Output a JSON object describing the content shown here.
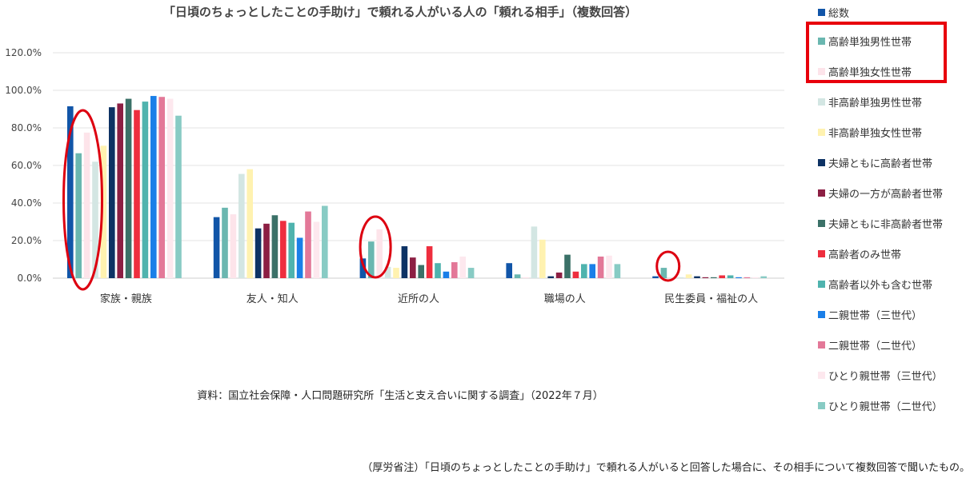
{
  "title": "「日頃のちょっとしたことの手助け」で頼れる人がいる人の「頼れる相手」（複数回答）",
  "source": "資料：国立社会保障・人口問題研究所「生活と支え合いに関する調査」（2022年７月）",
  "note": "（厚労省注）「日頃のちょっとしたことの手助け」で頼れる人がいると回答した場合に、その相手について複数回答で聞いたもの。",
  "chart_data": {
    "type": "bar",
    "ylim": [
      0,
      120
    ],
    "yticks": [
      "0.0%",
      "20.0%",
      "40.0%",
      "60.0%",
      "80.0%",
      "100.0%",
      "120.0%"
    ],
    "grid": true,
    "legend_position": "right",
    "categories": [
      "家族・親族",
      "友人・知人",
      "近所の人",
      "職場の人",
      "民生委員・福祉の人"
    ],
    "series": [
      {
        "name": "総数",
        "color": "#1155a8",
        "values": [
          91.5,
          32.5,
          10.5,
          8.0,
          1.0
        ]
      },
      {
        "name": "高齢単独男性世帯",
        "color": "#6ab7b0",
        "values": [
          66.5,
          37.5,
          19.5,
          2.0,
          5.5
        ]
      },
      {
        "name": "高齢単独女性世帯",
        "color": "#fde4ea",
        "values": [
          77.5,
          34.0,
          26.0,
          0.5,
          0.0
        ]
      },
      {
        "name": "非高齢単独男性世帯",
        "color": "#d3e6e3",
        "values": [
          62.0,
          55.5,
          6.0,
          27.5,
          0.5
        ]
      },
      {
        "name": "非高齢単独女性世帯",
        "color": "#fff2b0",
        "values": [
          70.5,
          58.0,
          5.5,
          20.5,
          2.0
        ]
      },
      {
        "name": "夫婦ともに高齢者世帯",
        "color": "#0d3264",
        "values": [
          91.0,
          26.5,
          17.0,
          1.0,
          1.0
        ]
      },
      {
        "name": "夫婦の一方が高齢者世帯",
        "color": "#8c1f43",
        "values": [
          93.0,
          29.0,
          11.0,
          3.0,
          0.5
        ]
      },
      {
        "name": "夫婦ともに非高齢者世帯",
        "color": "#3b7168",
        "values": [
          95.5,
          33.5,
          7.0,
          12.5,
          0.5
        ]
      },
      {
        "name": "高齢者のみ世帯",
        "color": "#ee2e3e",
        "values": [
          89.5,
          30.5,
          17.0,
          3.5,
          1.5
        ]
      },
      {
        "name": "高齢者以外も含む世帯",
        "color": "#4fb3ae",
        "values": [
          94.0,
          29.5,
          8.0,
          7.5,
          1.5
        ]
      },
      {
        "name": "二親世帯（三世代）",
        "color": "#1a7fe8",
        "values": [
          97.0,
          21.5,
          3.5,
          7.5,
          0.5
        ]
      },
      {
        "name": "二親世帯（二世代）",
        "color": "#e37898",
        "values": [
          96.5,
          35.5,
          8.5,
          11.5,
          0.5
        ]
      },
      {
        "name": "ひとり親世帯（三世代）",
        "color": "#fde8ee",
        "values": [
          95.5,
          30.0,
          11.5,
          12.0,
          0.5
        ]
      },
      {
        "name": "ひとり親世帯（二世代）",
        "color": "#88cbc4",
        "values": [
          86.5,
          38.5,
          5.5,
          7.5,
          1.0
        ]
      }
    ]
  },
  "highlight_color": "#e8000b",
  "ellipse_color": "#dd0010"
}
